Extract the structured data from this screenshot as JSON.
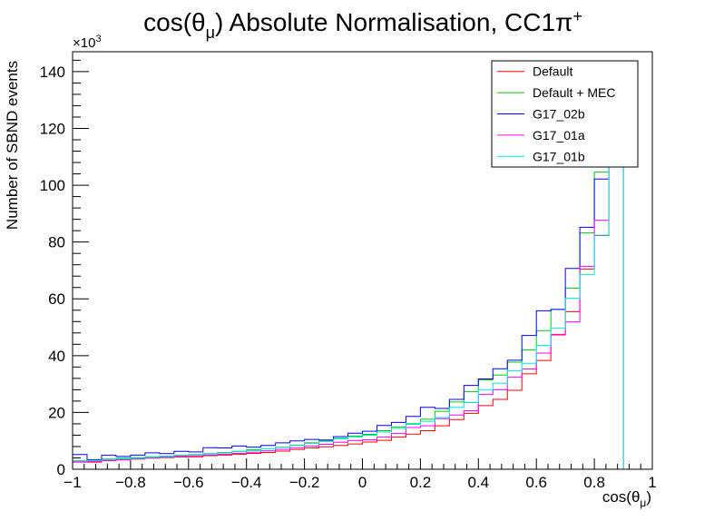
{
  "chart_data": {
    "type": "histogram-step",
    "title_main": "cos(θ",
    "title_sub": "μ",
    "title_rest": ") Absolute Normalisation, CC1π",
    "title_sup": "+",
    "xlabel_main": "cos(θ",
    "xlabel_sub": "μ",
    "xlabel_rest": ")",
    "ylabel": "Number of SBND events",
    "y_multiplier_main": "×10",
    "y_multiplier_exp": "3",
    "xlim": [
      -1,
      1
    ],
    "ylim": [
      0,
      147
    ],
    "x_ticks": [
      -1,
      -0.8,
      -0.6,
      -0.4,
      -0.2,
      0,
      0.2,
      0.4,
      0.6,
      0.8,
      1
    ],
    "x_tick_labels": [
      "−1",
      "−0.8",
      "−0.6",
      "−0.4",
      "−0.2",
      "0",
      "0.2",
      "0.4",
      "0.6",
      "0.8",
      "1"
    ],
    "y_ticks": [
      0,
      20,
      40,
      60,
      80,
      100,
      120,
      140
    ],
    "y_tick_labels": [
      "0",
      "20",
      "40",
      "60",
      "80",
      "100",
      "120",
      "140"
    ],
    "bin_edges_start": -1,
    "bin_width": 0.05,
    "legend_position": "top-right",
    "series": [
      {
        "name": "Default",
        "color": "#ff0000",
        "values": [
          2.5,
          2.5,
          3.0,
          3.3,
          3.6,
          3.9,
          4.1,
          4.3,
          4.4,
          4.8,
          5.0,
          5.3,
          5.6,
          5.9,
          6.4,
          7.0,
          7.5,
          7.9,
          8.4,
          8.9,
          9.6,
          10.2,
          11.3,
          12.4,
          13.6,
          15.3,
          17.5,
          19.7,
          22.4,
          24.6,
          27.8,
          33.6,
          38.3,
          47.3,
          55.5,
          70.5,
          82.3,
          117.0
        ]
      },
      {
        "name": "Default + MEC",
        "color": "#00cc00",
        "values": [
          3.0,
          3.3,
          3.6,
          3.9,
          4.1,
          4.4,
          4.6,
          4.9,
          5.2,
          5.5,
          5.9,
          6.3,
          6.9,
          7.2,
          7.7,
          8.5,
          9.3,
          10.1,
          10.9,
          11.7,
          12.3,
          13.6,
          14.9,
          15.9,
          17.6,
          20.4,
          23.7,
          27.3,
          31.5,
          33.2,
          37.7,
          42.0,
          48.8,
          56.3,
          63.8,
          83.2,
          104.6,
          134.2
        ]
      },
      {
        "name": "G17_02b",
        "color": "#0000ff",
        "values": [
          5.2,
          3.4,
          4.9,
          4.5,
          5.0,
          5.8,
          5.5,
          6.3,
          6.1,
          7.6,
          7.5,
          8.2,
          7.8,
          8.4,
          9.3,
          10.0,
          10.5,
          10.3,
          11.5,
          12.7,
          13.4,
          15.4,
          16.5,
          18.6,
          21.8,
          21.4,
          24.6,
          29.5,
          31.8,
          35.4,
          38.4,
          47.1,
          55.8,
          56.3,
          70.7,
          85.2,
          102.2,
          124.0
        ]
      },
      {
        "name": "G17_01a",
        "color": "#ff00ff",
        "values": [
          2.6,
          2.8,
          3.1,
          3.4,
          3.7,
          4.0,
          4.3,
          4.5,
          4.7,
          5.0,
          5.3,
          5.6,
          6.0,
          6.5,
          7.0,
          7.6,
          8.2,
          8.8,
          9.5,
          10.1,
          10.4,
          11.3,
          12.6,
          14.7,
          15.3,
          17.8,
          19.1,
          20.6,
          26.4,
          28.0,
          32.4,
          35.3,
          40.9,
          47.5,
          51.9,
          71.4,
          87.7,
          124.0
        ]
      },
      {
        "name": "G17_01b",
        "color": "#00e5e5",
        "values": [
          2.9,
          3.1,
          3.4,
          3.7,
          3.9,
          4.2,
          4.5,
          4.8,
          5.1,
          5.4,
          5.8,
          6.2,
          6.6,
          7.2,
          7.8,
          8.4,
          9.1,
          9.8,
          10.7,
          11.4,
          12.0,
          13.1,
          14.4,
          16.1,
          16.9,
          18.2,
          21.8,
          23.5,
          27.9,
          30.3,
          34.7,
          37.3,
          43.6,
          49.6,
          60.2,
          68.6,
          82.4,
          117.4
        ]
      }
    ]
  }
}
